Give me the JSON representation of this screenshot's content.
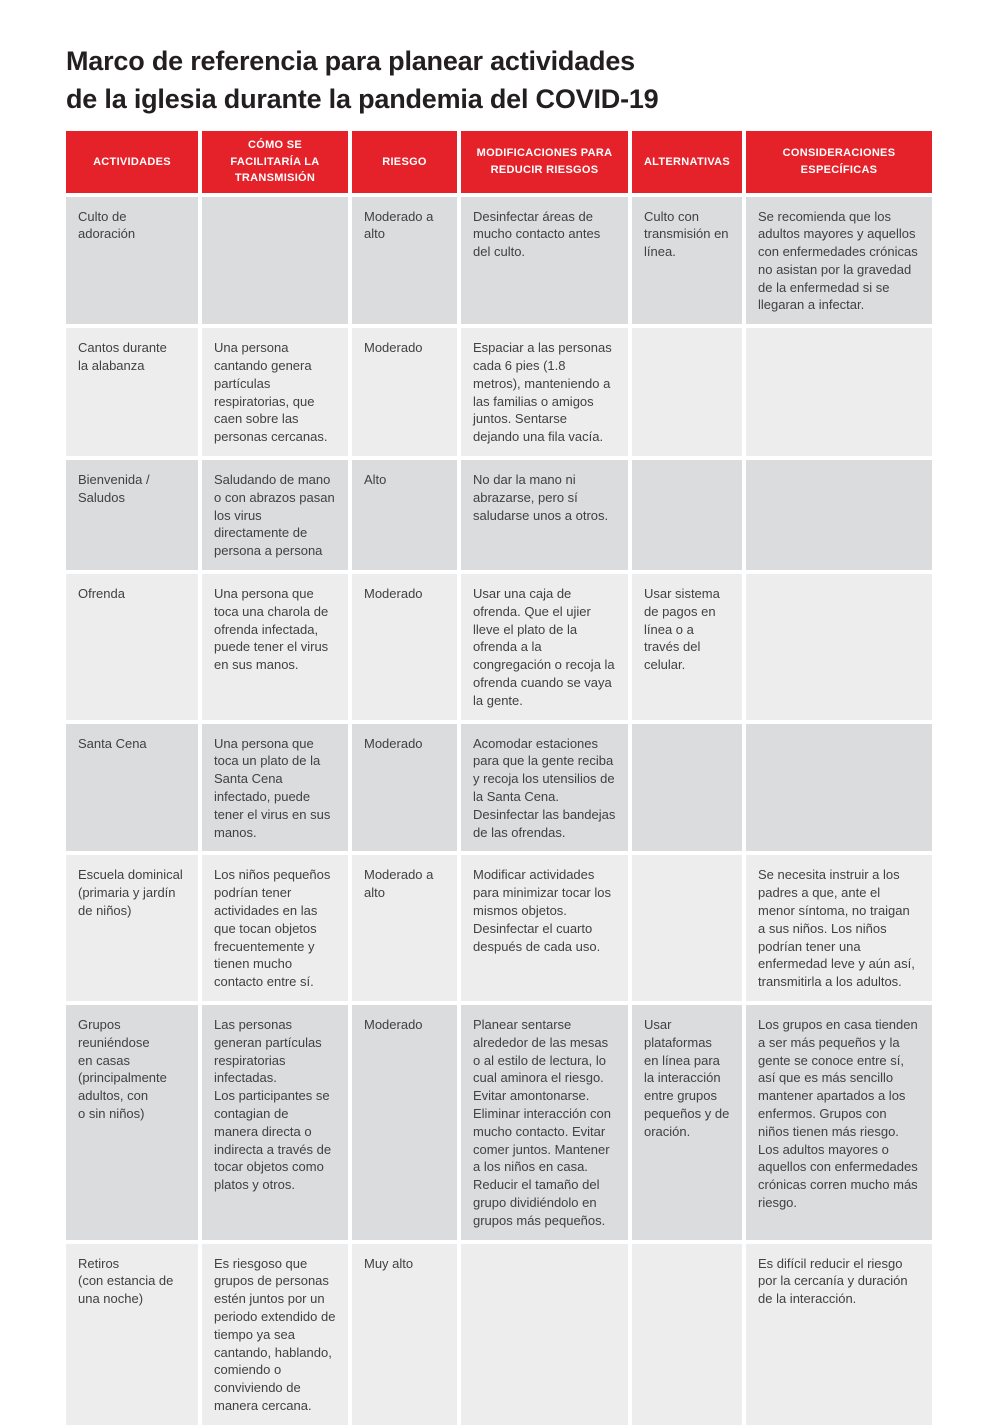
{
  "page": {
    "title": "Marco de referencia para planear actividades\nde la iglesia durante la pandemia del COVID-19"
  },
  "colors": {
    "header_bg": "#e5212a",
    "row_dark": "#dadcdd",
    "row_light": "#ededee",
    "text": "#414042",
    "title": "#231f20"
  },
  "table": {
    "columns": [
      "ACTIVIDADES",
      "CÓMO SE FACILITARÍA LA TRANSMISIÓN",
      "RIESGO",
      "MODIFICACIONES PARA REDUCIR RIESGOS",
      "ALTERNATIVAS",
      "CONSIDERACIONES ESPECÍFICAS"
    ],
    "rows": [
      {
        "cells": [
          "Culto de adoración",
          "",
          "Moderado a alto",
          "Desinfectar áreas de mucho contacto antes del culto.",
          "Culto con transmisión en línea.",
          "Se recomienda que los adultos mayores y aquellos con enfermedades crónicas no asistan por la gravedad de la enfermedad si se llegaran a infectar."
        ]
      },
      {
        "cells": [
          "Cantos durante\nla alabanza",
          "Una persona cantando genera partículas respiratorias, que caen sobre las personas cercanas.",
          "Moderado",
          "Espaciar a las personas cada 6 pies (1.8 metros), manteniendo a las familias o amigos juntos. Sentarse dejando una fila vacía.",
          "",
          ""
        ]
      },
      {
        "cells": [
          "Bienvenida /\nSaludos",
          "Saludando de mano o con abrazos pasan los virus directamente de persona a persona",
          "Alto",
          "No dar la mano ni abrazarse, pero sí saludarse unos a otros.",
          "",
          ""
        ]
      },
      {
        "cells": [
          "Ofrenda",
          "Una persona que toca una charola de ofrenda infectada, puede tener el virus en sus manos.",
          "Moderado",
          "Usar una caja de ofrenda. Que el ujier lleve el plato de la ofrenda a la congregación o recoja la ofrenda cuando se vaya la gente.",
          "Usar sistema de pagos en línea o a través del celular.",
          ""
        ]
      },
      {
        "cells": [
          "Santa Cena",
          "Una persona que toca un plato de la Santa Cena infectado, puede tener el virus en sus manos.",
          "Moderado",
          "Acomodar estaciones para que la gente reciba y recoja los utensilios de la Santa Cena. Desinfectar las bandejas de las ofrendas.",
          "",
          ""
        ]
      },
      {
        "cells": [
          "Escuela dominical\n(primaria y jardín\nde niños)",
          "Los niños pequeños podrían tener actividades en las que tocan objetos frecuentemente y tienen mucho contacto entre sí.",
          "Moderado a alto",
          "Modificar actividades para minimizar tocar los mismos objetos. Desinfectar el cuarto después de cada uso.",
          "",
          "Se necesita instruir a los padres a que, ante el menor síntoma, no traigan a sus niños. Los niños podrían tener una enfermedad leve y aún así, transmitirla a los adultos."
        ]
      },
      {
        "cells": [
          "Grupos\nreuniéndose\nen casas\n(principalmente\nadultos, con\no sin niños)",
          "Las personas generan partículas respiratorias infectadas.\nLos  participantes se contagian de manera directa o indirecta a través de tocar objetos como platos y otros.",
          "Moderado",
          "Planear sentarse alrededor de las mesas o al estilo de lectura, lo cual aminora el riesgo. Evitar amontonarse. Eliminar interacción con mucho contacto. Evitar comer juntos. Mantener a los niños en casa. Reducir el tamaño del grupo dividiéndolo en grupos más pequeños.",
          "Usar\nplataformas\nen línea para\nla interacción\nentre grupos\npequeños y de\noración.",
          "Los grupos en casa tienden a ser más pequeños y la gente se conoce entre sí, así que es más sencillo mantener apartados a los enfermos. Grupos con niños tienen más riesgo. Los adultos mayores o aquellos con enfermedades crónicas corren mucho más riesgo."
        ]
      },
      {
        "cells": [
          "Retiros\n(con estancia de\nuna noche)",
          "Es riesgoso que grupos de personas estén juntos por un periodo extendido de tiempo ya sea cantando, hablando, comiendo o conviviendo de manera cercana.",
          "Muy alto",
          "",
          "",
          "Es difícil reducir el riesgo por la cercanía y duración de la interacción."
        ]
      }
    ]
  }
}
